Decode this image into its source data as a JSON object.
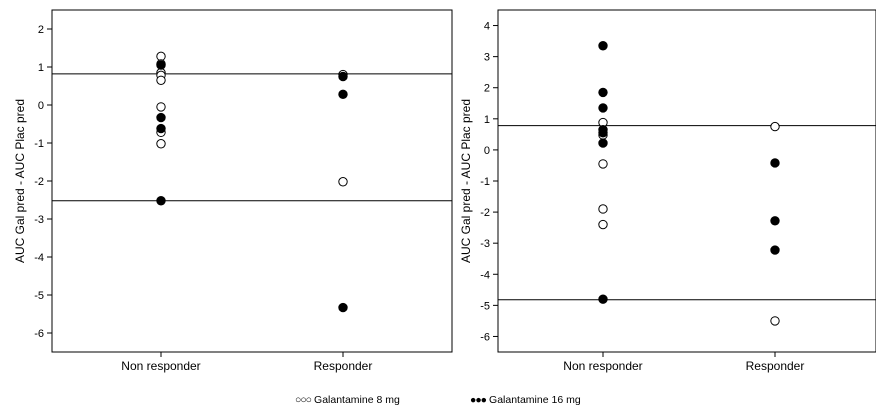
{
  "chart_data": [
    {
      "type": "scatter",
      "ylabel": "AUC Gal pred - AUC Plac pred",
      "categories": [
        "Non responder",
        "Responder"
      ],
      "ylim": [
        -6.5,
        2.5
      ],
      "yticks": [
        2,
        1,
        0,
        -1,
        -2,
        -3,
        -4,
        -5,
        -6
      ],
      "hlines": [
        0.82,
        -2.52
      ],
      "series": [
        {
          "name": "Galantamine 8 mg",
          "marker": "open-circle",
          "points": [
            {
              "x": "Non responder",
              "y": 1.28
            },
            {
              "x": "Non responder",
              "y": 1.08
            },
            {
              "x": "Non responder",
              "y": 0.85
            },
            {
              "x": "Non responder",
              "y": 0.78
            },
            {
              "x": "Non responder",
              "y": 0.65
            },
            {
              "x": "Non responder",
              "y": -0.05
            },
            {
              "x": "Non responder",
              "y": -0.72
            },
            {
              "x": "Non responder",
              "y": -1.02
            },
            {
              "x": "Responder",
              "y": 0.8
            },
            {
              "x": "Responder",
              "y": -2.02
            }
          ]
        },
        {
          "name": "Galantamine 16 mg",
          "marker": "filled-circle",
          "points": [
            {
              "x": "Non responder",
              "y": 1.05
            },
            {
              "x": "Non responder",
              "y": -0.33
            },
            {
              "x": "Non responder",
              "y": -0.62
            },
            {
              "x": "Non responder",
              "y": -2.52
            },
            {
              "x": "Responder",
              "y": 0.75
            },
            {
              "x": "Responder",
              "y": 0.28
            },
            {
              "x": "Responder",
              "y": -5.33
            }
          ]
        }
      ]
    },
    {
      "type": "scatter",
      "ylabel": "AUC Gal pred - AUC Plac pred",
      "categories": [
        "Non responder",
        "Responder"
      ],
      "ylim": [
        -6.5,
        4.5
      ],
      "yticks": [
        4,
        3,
        2,
        1,
        0,
        -1,
        -2,
        -3,
        -4,
        -5,
        -6
      ],
      "hlines": [
        0.78,
        -4.82
      ],
      "series": [
        {
          "name": "Galantamine 8 mg",
          "marker": "open-circle",
          "points": [
            {
              "x": "Non responder",
              "y": 0.88
            },
            {
              "x": "Non responder",
              "y": 0.48
            },
            {
              "x": "Non responder",
              "y": -0.45
            },
            {
              "x": "Non responder",
              "y": -1.9
            },
            {
              "x": "Non responder",
              "y": -2.4
            },
            {
              "x": "Responder",
              "y": 0.75
            },
            {
              "x": "Responder",
              "y": -5.5
            }
          ]
        },
        {
          "name": "Galantamine 16 mg",
          "marker": "filled-circle",
          "points": [
            {
              "x": "Non responder",
              "y": 3.35
            },
            {
              "x": "Non responder",
              "y": 1.85
            },
            {
              "x": "Non responder",
              "y": 1.35
            },
            {
              "x": "Non responder",
              "y": 0.65
            },
            {
              "x": "Non responder",
              "y": 0.55
            },
            {
              "x": "Non responder",
              "y": 0.22
            },
            {
              "x": "Non responder",
              "y": -4.8
            },
            {
              "x": "Responder",
              "y": -0.42
            },
            {
              "x": "Responder",
              "y": -2.28
            },
            {
              "x": "Responder",
              "y": -3.22
            }
          ]
        }
      ]
    }
  ],
  "legend": {
    "items": [
      {
        "markers": "○○○",
        "label": "Galantamine 8 mg"
      },
      {
        "markers": "●●●",
        "label": "Galantamine 16 mg"
      }
    ]
  }
}
